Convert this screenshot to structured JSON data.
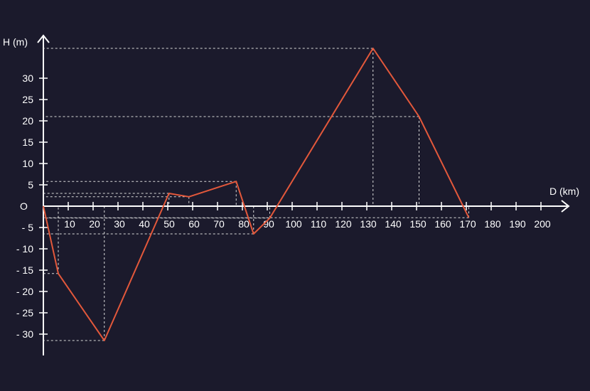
{
  "chart_data": {
    "type": "line",
    "xlabel": "D (km)",
    "ylabel": "H (m)",
    "origin_label": "O",
    "xlim": [
      0,
      215
    ],
    "ylim": [
      -35,
      38
    ],
    "x_ticks": [
      10,
      20,
      30,
      40,
      50,
      60,
      70,
      80,
      90,
      100,
      110,
      120,
      130,
      140,
      150,
      160,
      170,
      180,
      190,
      200
    ],
    "x_tick_labels": [
      "10",
      "20",
      "30",
      "40",
      "50",
      "60",
      "70",
      "80",
      "90",
      "100",
      "110",
      "120",
      "130",
      "140",
      "150",
      "160",
      "170",
      "180",
      "190",
      "200"
    ],
    "y_ticks": [
      30,
      25,
      20,
      15,
      10,
      5,
      -5,
      -10,
      -15,
      -20,
      -25,
      -30
    ],
    "y_tick_labels": [
      "30",
      "25",
      "20",
      "15",
      "10",
      "5",
      "- 5",
      "- 10",
      "- 15",
      "- 20",
      "- 25",
      "- 30"
    ],
    "series": [
      {
        "x": [
          0,
          6,
          24.5,
          50.5,
          58.5,
          77.5,
          84.5,
          91,
          132.5,
          151,
          171
        ],
        "y": [
          0,
          -15.8,
          -31.5,
          3,
          2.2,
          5.8,
          -6.5,
          -2.8,
          37,
          21,
          -2.7
        ]
      }
    ],
    "guide_points": [
      {
        "x": 6,
        "y": -15.8
      },
      {
        "x": 24.5,
        "y": -31.5
      },
      {
        "x": 50.5,
        "y": 3
      },
      {
        "x": 58.5,
        "y": 2.2
      },
      {
        "x": 77.5,
        "y": 5.8
      },
      {
        "x": 84.5,
        "y": -6.5
      },
      {
        "x": 91,
        "y": -2.8
      },
      {
        "x": 132.5,
        "y": 37
      },
      {
        "x": 151,
        "y": 21
      },
      {
        "x": 171,
        "y": -2.7
      }
    ],
    "grid": false,
    "colors": {
      "background": "#1b1a2c",
      "axis": "#ffffff",
      "line": "#e3583b",
      "guide": "#d9d9d9",
      "text": "#ffffff"
    }
  }
}
